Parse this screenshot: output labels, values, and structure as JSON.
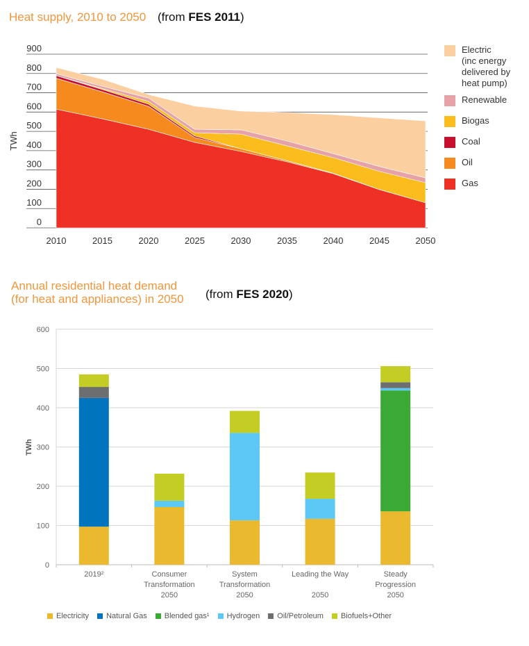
{
  "chart1": {
    "title": "Heat supply, 2010 to 2050",
    "source_prefix": "(from ",
    "source_bold": "FES 2011",
    "source_suffix": ")",
    "chart_data": {
      "type": "area",
      "title": "Heat supply, 2010 to 2050",
      "xlabel": "",
      "ylabel": "TWh",
      "x": [
        2010,
        2015,
        2020,
        2025,
        2030,
        2035,
        2040,
        2045,
        2050
      ],
      "xticks": [
        "2010",
        "2015",
        "2020",
        "2025",
        "2030",
        "2035",
        "2040",
        "2045",
        "2050"
      ],
      "yticks": [
        "0",
        "100",
        "200",
        "300",
        "400",
        "500",
        "600",
        "700",
        "800",
        "900"
      ],
      "ylim": [
        0,
        900
      ],
      "stacked": true,
      "legend_position": "right",
      "series": [
        {
          "name": "Gas",
          "color": "#ee3124",
          "values": [
            615,
            565,
            511,
            443,
            396,
            342,
            281,
            198,
            130
          ]
        },
        {
          "name": "Oil",
          "color": "#f58b1f",
          "values": [
            160,
            140,
            119,
            25,
            14,
            6,
            2,
            1,
            0
          ]
        },
        {
          "name": "Coal",
          "color": "#c8102e",
          "values": [
            14,
            12,
            11,
            8,
            0,
            0,
            0,
            0,
            0
          ]
        },
        {
          "name": "Biogas",
          "color": "#fbbc1e",
          "values": [
            0,
            5,
            14,
            17,
            76,
            77,
            81,
            94,
            104
          ]
        },
        {
          "name": "Renewable",
          "color": "#e6a2a6",
          "values": [
            10,
            12,
            18,
            18,
            22,
            25,
            21,
            25,
            25
          ]
        },
        {
          "name": "Electric (inc energy delivered by heat pump)",
          "color": "#fbcfa0",
          "values": [
            32,
            36,
            18,
            120,
            97,
            148,
            202,
            252,
            295
          ]
        }
      ]
    },
    "legend": [
      {
        "label": "Electric",
        "sublines": [
          "(inc energy",
          "delivered by",
          "heat pump)"
        ],
        "color": "#fbcfa0"
      },
      {
        "label": "Renewable",
        "sublines": [],
        "color": "#e6a2a6"
      },
      {
        "label": "Biogas",
        "sublines": [],
        "color": "#fbbc1e"
      },
      {
        "label": "Coal",
        "sublines": [],
        "color": "#c8102e"
      },
      {
        "label": "Oil",
        "sublines": [],
        "color": "#f58b1f"
      },
      {
        "label": "Gas",
        "sublines": [],
        "color": "#ee3124"
      }
    ]
  },
  "chart2": {
    "title_line1": "Annual residential heat demand",
    "title_line2": "(for heat and appliances) in 2050",
    "source_prefix": "(from ",
    "source_bold": "FES 2020",
    "source_suffix": ")",
    "chart_data": {
      "type": "bar",
      "stacked": true,
      "title": "Annual residential heat demand (for heat and appliances) in 2050",
      "xlabel": "",
      "ylabel": "TWh",
      "ylim": [
        0,
        600
      ],
      "yticks": [
        "0",
        "100",
        "200",
        "300",
        "400",
        "500",
        "600"
      ],
      "grid": true,
      "legend_position": "bottom",
      "categories": [
        [
          "2019²"
        ],
        [
          "Consumer",
          "Transformation",
          "2050"
        ],
        [
          "System",
          "Transformation",
          "2050"
        ],
        [
          "Leading the Way",
          "",
          "2050"
        ],
        [
          "Steady",
          "Progression",
          "2050"
        ]
      ],
      "series": [
        {
          "name": "Electricity",
          "color": "#ebb92d",
          "values": [
            97,
            147,
            113,
            117,
            136
          ]
        },
        {
          "name": "Natural Gas",
          "color": "#0075be",
          "values": [
            328,
            0,
            0,
            0,
            0
          ]
        },
        {
          "name": "Blended gas¹",
          "color": "#3aa935",
          "values": [
            0,
            0,
            0,
            0,
            308
          ]
        },
        {
          "name": "Hydrogen",
          "color": "#5bc8f5",
          "values": [
            0,
            16,
            223,
            51,
            6
          ]
        },
        {
          "name": "Oil/Petroleum",
          "color": "#6d6e70",
          "values": [
            28,
            0,
            0,
            0,
            15
          ]
        },
        {
          "name": "Biofuels+Other",
          "color": "#c3cd23",
          "values": [
            32,
            69,
            56,
            67,
            41
          ]
        }
      ]
    }
  }
}
